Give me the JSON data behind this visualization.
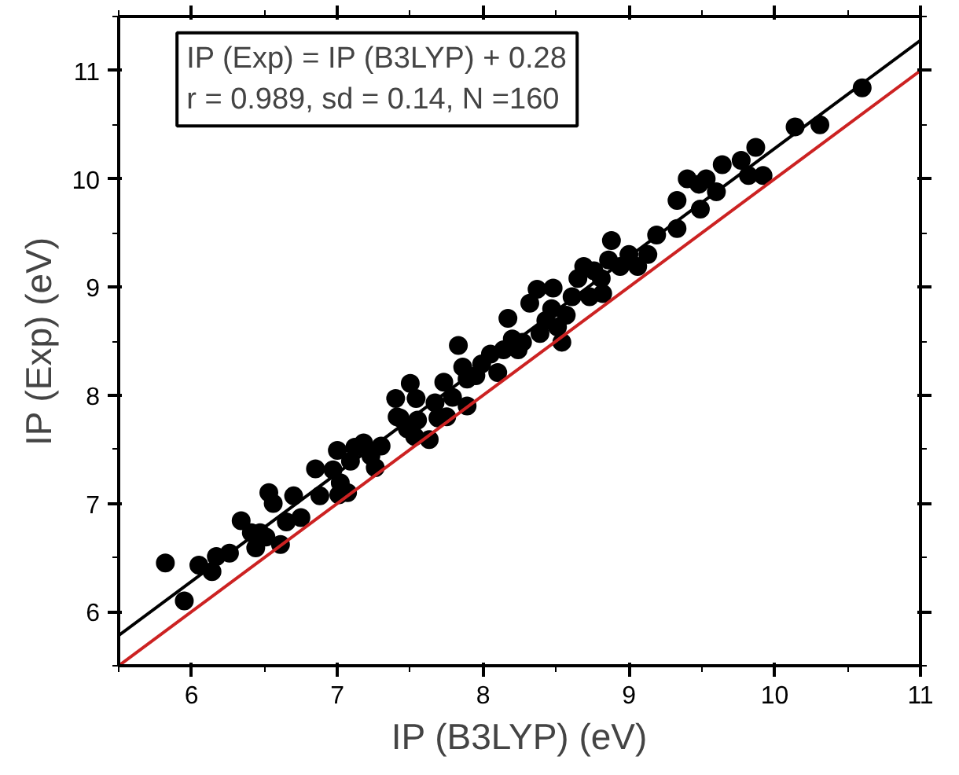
{
  "chart_data": {
    "type": "scatter",
    "xlabel": "IP (B3LYP) (eV)",
    "ylabel": "IP (Exp) (eV)",
    "annotations": [
      "IP (Exp) = IP (B3LYP) + 0.28",
      "r = 0.989, sd = 0.14, N =160"
    ],
    "xlim": [
      5.5,
      11
    ],
    "ylim": [
      5.5,
      11.5
    ],
    "xticks": [
      6,
      7,
      8,
      9,
      10,
      11
    ],
    "yticks": [
      6,
      7,
      8,
      9,
      10,
      11
    ],
    "grid": false,
    "series": [
      {
        "marker": "circle",
        "color": "#000000",
        "x": [
          5.82,
          5.95,
          6.05,
          6.14,
          6.17,
          6.26,
          6.34,
          6.41,
          6.44,
          6.47,
          6.53,
          6.56,
          6.51,
          6.61,
          6.65,
          6.7,
          6.75,
          6.85,
          6.88,
          7.0,
          6.97,
          7.02,
          7.01,
          7.07,
          7.09,
          7.12,
          7.18,
          7.23,
          7.26,
          7.3,
          7.4,
          7.41,
          7.43,
          7.5,
          7.48,
          7.53,
          7.54,
          7.55,
          7.63,
          7.67,
          7.69,
          7.73,
          7.75,
          7.79,
          7.83,
          7.86,
          7.89,
          7.89,
          7.95,
          7.99,
          8.05,
          8.1,
          8.14,
          8.17,
          8.2,
          8.24,
          8.27,
          8.32,
          8.37,
          8.39,
          8.43,
          8.47,
          8.48,
          8.51,
          8.54,
          8.57,
          8.61,
          8.65,
          8.69,
          8.73,
          8.76,
          8.81,
          8.82,
          8.86,
          8.88,
          8.94,
          9.0,
          9.06,
          9.13,
          9.19,
          9.33,
          9.33,
          9.4,
          9.48,
          9.49,
          9.53,
          9.6,
          9.64,
          9.77,
          9.82,
          9.87,
          9.92,
          10.14,
          10.31,
          10.6
        ],
        "values": [
          6.45,
          6.1,
          6.43,
          6.37,
          6.51,
          6.54,
          6.84,
          6.73,
          6.59,
          6.73,
          7.1,
          7.0,
          6.69,
          6.62,
          6.83,
          7.07,
          6.87,
          7.32,
          7.07,
          7.49,
          7.31,
          7.19,
          7.08,
          7.1,
          7.39,
          7.52,
          7.56,
          7.44,
          7.33,
          7.53,
          7.97,
          7.8,
          7.79,
          8.11,
          7.69,
          7.62,
          7.97,
          7.77,
          7.59,
          7.93,
          7.79,
          8.12,
          7.8,
          7.98,
          8.46,
          8.26,
          7.9,
          8.15,
          8.18,
          8.29,
          8.38,
          8.21,
          8.42,
          8.71,
          8.52,
          8.42,
          8.49,
          8.85,
          8.98,
          8.57,
          8.69,
          8.8,
          8.99,
          8.63,
          8.49,
          8.74,
          8.91,
          9.08,
          9.19,
          8.91,
          9.15,
          9.08,
          8.94,
          9.25,
          9.43,
          9.19,
          9.3,
          9.19,
          9.3,
          9.48,
          9.54,
          9.8,
          10.0,
          9.95,
          9.72,
          10.0,
          9.88,
          10.13,
          10.17,
          10.03,
          10.29,
          10.03,
          10.48,
          10.5,
          10.84
        ]
      },
      {
        "type": "line",
        "marker": "none",
        "color": "#000000",
        "x": [
          5.5,
          11
        ],
        "values": [
          5.78,
          11.28
        ]
      },
      {
        "type": "line",
        "marker": "none",
        "color": "#cc2222",
        "x": [
          5.5,
          11
        ],
        "values": [
          5.5,
          11
        ]
      }
    ]
  }
}
